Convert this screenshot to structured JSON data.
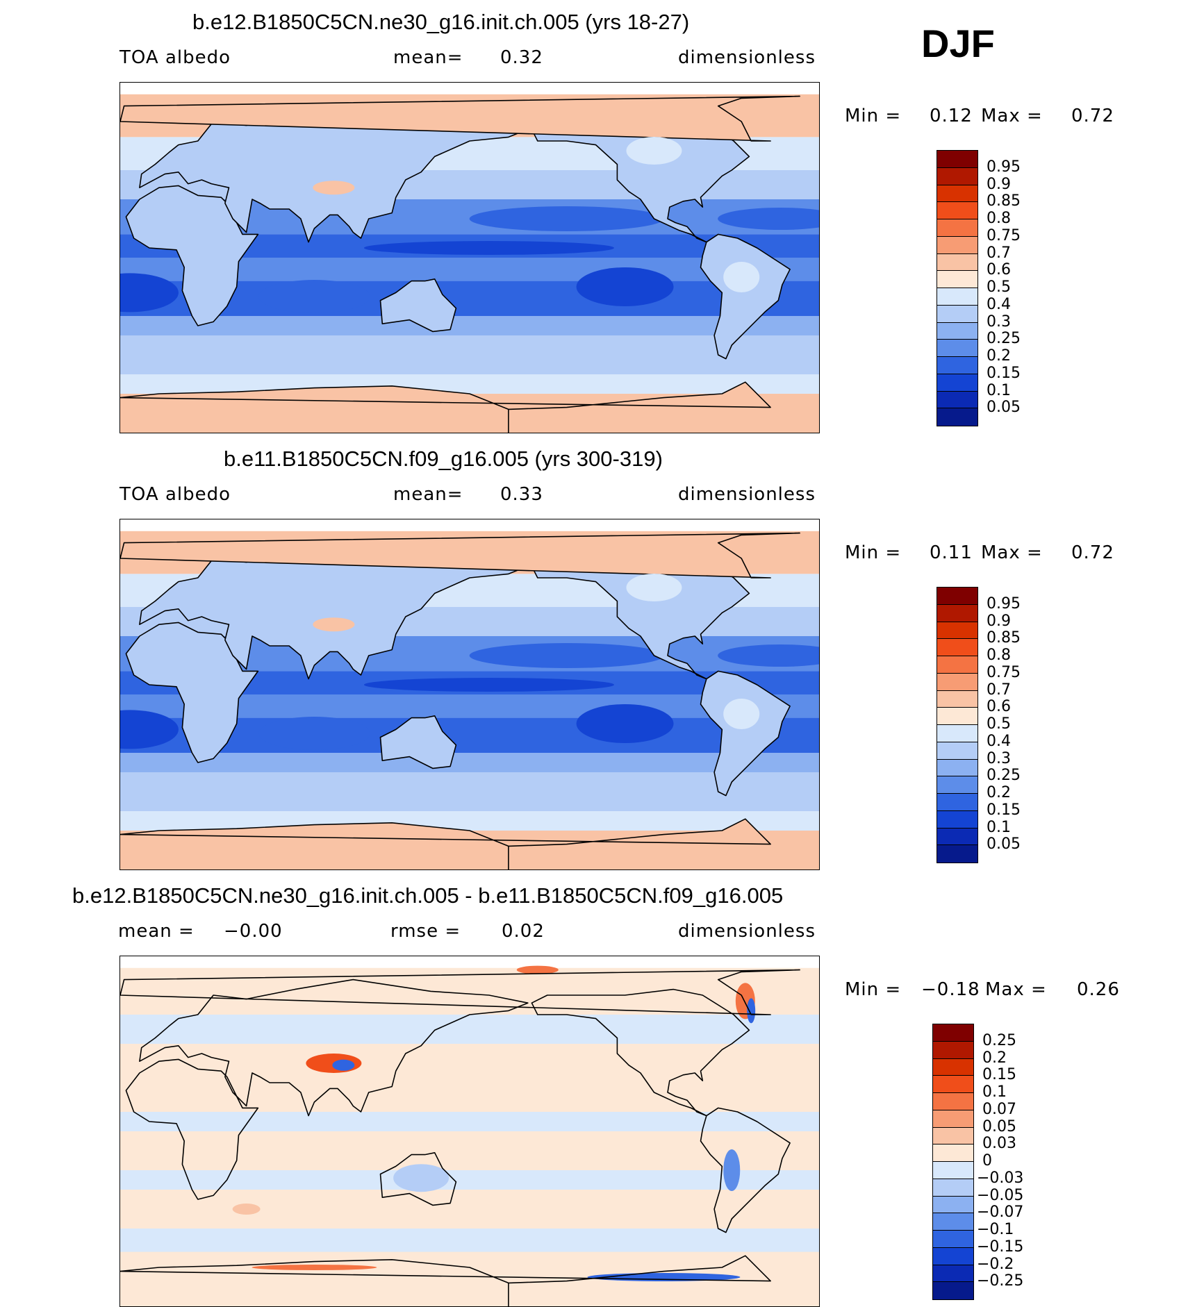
{
  "season": "DJF",
  "panels": [
    {
      "title": "b.e12.B1850C5CN.ne30_g16.init.ch.005 (yrs 18-27)",
      "left_label": "TOA albedo",
      "mid_label": "mean=",
      "mid_value": "0.32",
      "right_label": "dimensionless",
      "min_label": "Min =",
      "min_value": "0.12",
      "max_label": "Max =",
      "max_value": "0.72",
      "colorbar": {
        "labels": [
          "0.95",
          "0.9",
          "0.85",
          "0.8",
          "0.75",
          "0.7",
          "0.6",
          "0.5",
          "0.4",
          "0.3",
          "0.25",
          "0.2",
          "0.15",
          "0.1",
          "0.05"
        ],
        "colors": [
          "#7f0000",
          "#b01800",
          "#d83200",
          "#f04e1a",
          "#f47343",
          "#f79c74",
          "#f9c3a5",
          "#fde8d6",
          "#d8e8fb",
          "#b4cdf6",
          "#8cb1f1",
          "#5d8de9",
          "#2f64e0",
          "#1444d3",
          "#0b2ab4",
          "#061a8c"
        ]
      },
      "style": "base"
    },
    {
      "title": "b.e11.B1850C5CN.f09_g16.005 (yrs 300-319)",
      "left_label": "TOA albedo",
      "mid_label": "mean=",
      "mid_value": "0.33",
      "right_label": "dimensionless",
      "min_label": "Min =",
      "min_value": "0.11",
      "max_label": "Max =",
      "max_value": "0.72",
      "colorbar": {
        "labels": [
          "0.95",
          "0.9",
          "0.85",
          "0.8",
          "0.75",
          "0.7",
          "0.6",
          "0.5",
          "0.4",
          "0.3",
          "0.25",
          "0.2",
          "0.15",
          "0.1",
          "0.05"
        ],
        "colors": [
          "#7f0000",
          "#b01800",
          "#d83200",
          "#f04e1a",
          "#f47343",
          "#f79c74",
          "#f9c3a5",
          "#fde8d6",
          "#d8e8fb",
          "#b4cdf6",
          "#8cb1f1",
          "#5d8de9",
          "#2f64e0",
          "#1444d3",
          "#0b2ab4",
          "#061a8c"
        ]
      },
      "style": "base"
    },
    {
      "title": "b.e12.B1850C5CN.ne30_g16.init.ch.005 - b.e11.B1850C5CN.f09_g16.005",
      "left_label": "mean =",
      "left_value": "−0.00",
      "mid_label": "rmse =",
      "mid_value": "0.02",
      "right_label": "dimensionless",
      "min_label": "Min =",
      "min_value": "−0.18",
      "max_label": "Max =",
      "max_value": "0.26",
      "colorbar": {
        "labels": [
          "0.25",
          "0.2",
          "0.15",
          "0.1",
          "0.07",
          "0.05",
          "0.03",
          "0",
          "−0.03",
          "−0.05",
          "−0.07",
          "−0.1",
          "−0.15",
          "−0.2",
          "−0.25"
        ],
        "colors": [
          "#7f0000",
          "#b01800",
          "#d83200",
          "#f04e1a",
          "#f47343",
          "#f79c74",
          "#f9c3a5",
          "#fde8d6",
          "#d8e8fb",
          "#b4cdf6",
          "#8cb1f1",
          "#5d8de9",
          "#2f64e0",
          "#1444d3",
          "#0b2ab4",
          "#061a8c"
        ]
      },
      "style": "diff"
    }
  ]
}
